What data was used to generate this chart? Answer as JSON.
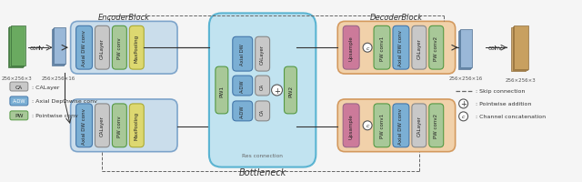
{
  "bg_color": "#f5f5f5",
  "encoder_block_label": "EncoderBlock",
  "decoder_block_label": "DecoderBlock",
  "bottleneck_label": "Bottleneck",
  "res_connection_label": "Res connection",
  "colors": {
    "blue_block": "#b8d4e8",
    "orange_block": "#f0c898",
    "light_blue_bg": "#b8e0f0",
    "axial_dw": "#7bafd4",
    "ca_layer": "#c8c8c8",
    "pw_conv": "#a8c898",
    "maxpool": "#ddd870",
    "upsample": "#cc7a9a",
    "feature_map_blue": "#9ab8d8",
    "green_image": "#6aaa60",
    "sandy_image": "#c8a060",
    "skip_dash": "#666666",
    "arrow": "#333333"
  }
}
